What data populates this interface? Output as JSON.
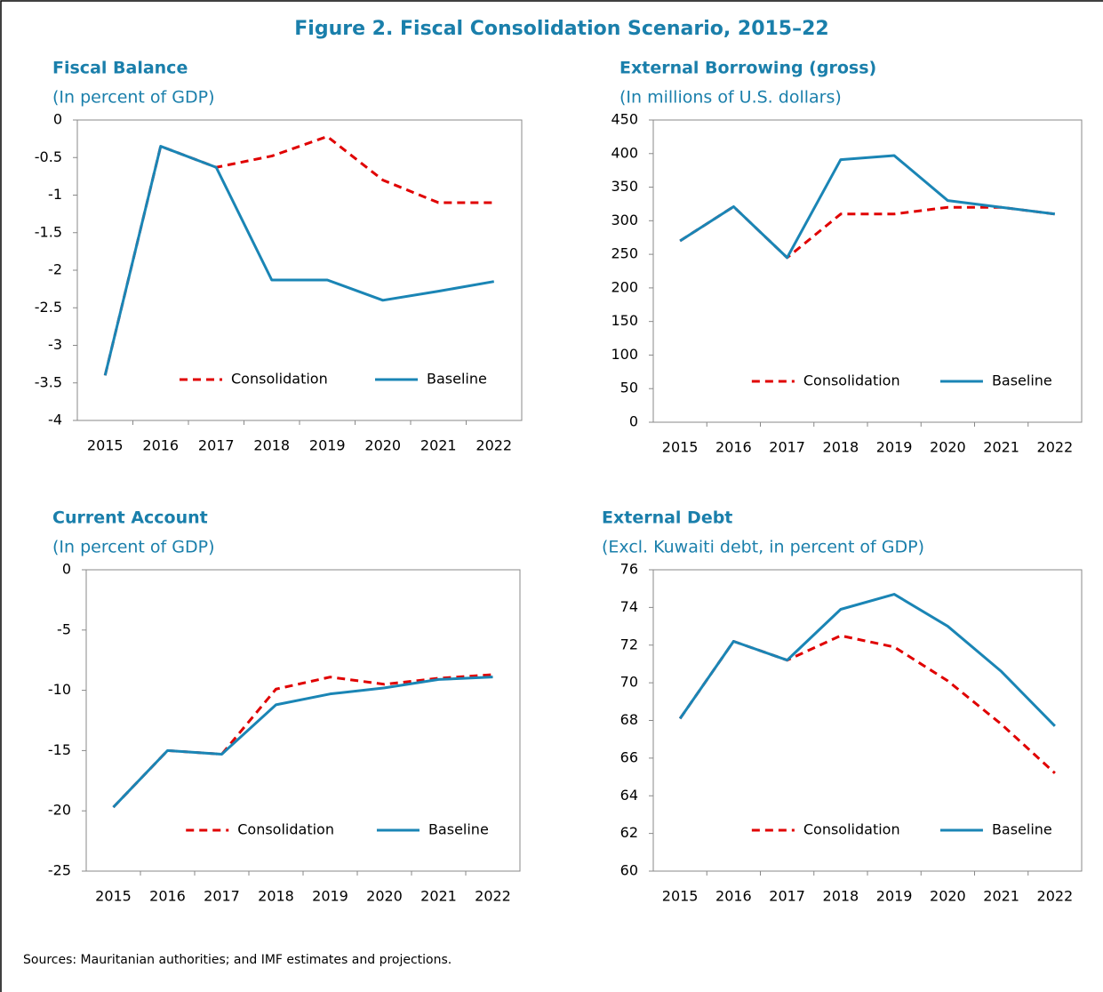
{
  "title": "Figure 2. Fiscal Consolidation Scenario, 2015–22",
  "source": "Sources: Mauritanian authorities; and IMF estimates and projections.",
  "chart_data": [
    {
      "type": "line",
      "title": "Fiscal Balance",
      "subtitle": "(In percent of GDP)",
      "categories": [
        "2015",
        "2016",
        "2017",
        "2018",
        "2019",
        "2020",
        "2021",
        "2022"
      ],
      "series": [
        {
          "name": "Consolidation",
          "color": "#e00000",
          "style": "dashed",
          "values": [
            -3.4,
            -0.35,
            -0.63,
            -0.48,
            -0.22,
            -0.8,
            -1.1,
            -1.1
          ]
        },
        {
          "name": "Baseline",
          "color": "#1a85b5",
          "style": "solid",
          "values": [
            -3.4,
            -0.35,
            -0.63,
            -2.13,
            -2.13,
            -2.4,
            -2.28,
            -2.15
          ]
        }
      ],
      "ylim": [
        -4,
        0
      ],
      "yticks": [
        0,
        -0.5,
        -1,
        -1.5,
        -2,
        -2.5,
        -3,
        -3.5,
        -4
      ],
      "legend": "lower center"
    },
    {
      "type": "line",
      "title": "External Borrowing (gross)",
      "subtitle": "(In millions of U.S. dollars)",
      "categories": [
        "2015",
        "2016",
        "2017",
        "2018",
        "2019",
        "2020",
        "2021",
        "2022"
      ],
      "series": [
        {
          "name": "Consolidation",
          "color": "#e00000",
          "style": "dashed",
          "values": [
            270,
            321,
            245,
            310,
            310,
            320,
            320,
            310
          ]
        },
        {
          "name": "Baseline",
          "color": "#1a85b5",
          "style": "solid",
          "values": [
            270,
            321,
            245,
            391,
            397,
            330,
            320,
            310
          ]
        }
      ],
      "ylim": [
        0,
        450
      ],
      "yticks": [
        450,
        400,
        350,
        300,
        250,
        200,
        150,
        100,
        50,
        0
      ],
      "legend": "lower center"
    },
    {
      "type": "line",
      "title": "Current Account",
      "subtitle": "(In percent of GDP)",
      "categories": [
        "2015",
        "2016",
        "2017",
        "2018",
        "2019",
        "2020",
        "2021",
        "2022"
      ],
      "series": [
        {
          "name": "Consolidation",
          "color": "#e00000",
          "style": "dashed",
          "values": [
            -19.7,
            -15.0,
            -15.3,
            -9.9,
            -8.9,
            -9.5,
            -9.0,
            -8.7
          ]
        },
        {
          "name": "Baseline",
          "color": "#1a85b5",
          "style": "solid",
          "values": [
            -19.7,
            -15.0,
            -15.3,
            -11.2,
            -10.3,
            -9.8,
            -9.1,
            -8.9
          ]
        }
      ],
      "ylim": [
        -25,
        0
      ],
      "yticks": [
        0,
        -5,
        -10,
        -15,
        -20,
        -25
      ],
      "legend": "lower center"
    },
    {
      "type": "line",
      "title": "External Debt",
      "subtitle": "(Excl. Kuwaiti debt, in percent of GDP)",
      "categories": [
        "2015",
        "2016",
        "2017",
        "2018",
        "2019",
        "2020",
        "2021",
        "2022"
      ],
      "series": [
        {
          "name": "Consolidation",
          "color": "#e00000",
          "style": "dashed",
          "values": [
            68.1,
            72.2,
            71.2,
            72.5,
            71.9,
            70.1,
            67.8,
            65.2
          ]
        },
        {
          "name": "Baseline",
          "color": "#1a85b5",
          "style": "solid",
          "values": [
            68.1,
            72.2,
            71.2,
            73.9,
            74.7,
            73.0,
            70.6,
            67.7
          ]
        }
      ],
      "ylim": [
        60,
        76
      ],
      "yticks": [
        76,
        74,
        72,
        70,
        68,
        66,
        64,
        62,
        60
      ],
      "legend": "lower center"
    }
  ]
}
